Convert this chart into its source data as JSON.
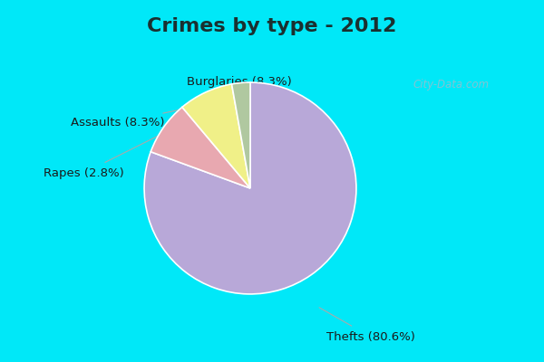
{
  "title": "Crimes by type - 2012",
  "slices": [
    {
      "label": "Thefts (80.6%)",
      "value": 80.6,
      "color": "#b8a8d8"
    },
    {
      "label": "Burglaries (8.3%)",
      "value": 8.3,
      "color": "#e8a8b0"
    },
    {
      "label": "Assaults (8.3%)",
      "value": 8.3,
      "color": "#f0f088"
    },
    {
      "label": "Rapes (2.8%)",
      "value": 2.8,
      "color": "#b0c8a0"
    }
  ],
  "background_top": "#00e8f8",
  "background_main_top": "#d8ede0",
  "background_main_bottom": "#e8f4e8",
  "title_color": "#1a3030",
  "title_fontsize": 16,
  "label_fontsize": 9.5,
  "watermark": "City-Data.com",
  "wedge_edge_color": "white",
  "line_color": "#aaaaaa"
}
